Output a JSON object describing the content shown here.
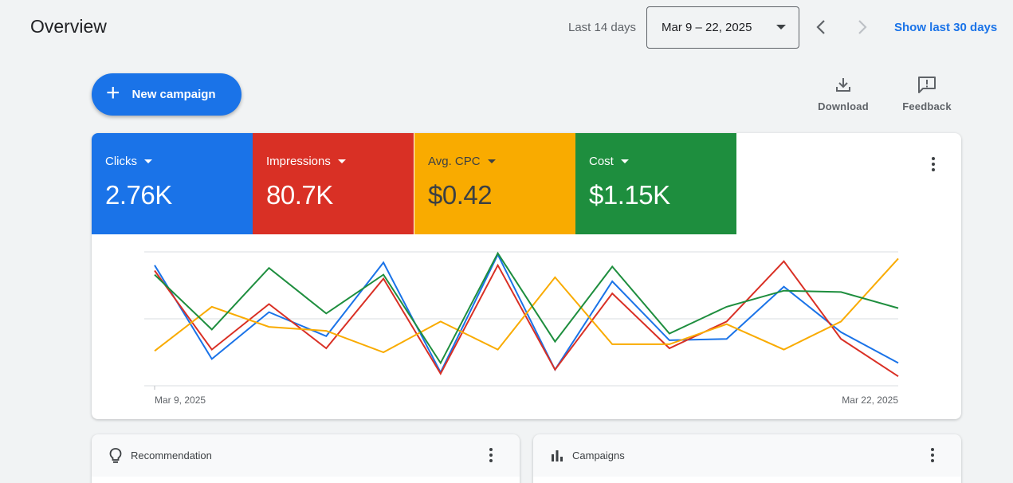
{
  "header": {
    "title": "Overview",
    "date_range_label": "Last 14 days",
    "date_range_value": "Mar 9 – 22, 2025",
    "show_last_30": "Show last 30 days"
  },
  "toolbar": {
    "new_campaign": "New campaign",
    "download": "Download",
    "feedback": "Feedback"
  },
  "metrics": [
    {
      "name": "Clicks",
      "value": "2.76K",
      "color": "#1a73e8"
    },
    {
      "name": "Impressions",
      "value": "80.7K",
      "color": "#d93025"
    },
    {
      "name": "Avg. CPC",
      "value": "$0.42",
      "color": "#f9ab00"
    },
    {
      "name": "Cost",
      "value": "$1.15K",
      "color": "#1e8e3e"
    }
  ],
  "chart_data": {
    "type": "line",
    "x_labels": [
      "Mar 9, 2025",
      "Mar 22, 2025"
    ],
    "x": [
      "Mar 9",
      "Mar 10",
      "Mar 11",
      "Mar 12",
      "Mar 13",
      "Mar 14",
      "Mar 15",
      "Mar 16",
      "Mar 17",
      "Mar 18",
      "Mar 19",
      "Mar 20",
      "Mar 21",
      "Mar 22"
    ],
    "ylim": [
      0,
      1
    ],
    "grid": true,
    "series": [
      {
        "name": "Clicks",
        "color": "#1a73e8",
        "values": [
          0.9,
          0.2,
          0.55,
          0.37,
          0.92,
          0.1,
          0.98,
          0.12,
          0.78,
          0.34,
          0.35,
          0.74,
          0.4,
          0.17
        ]
      },
      {
        "name": "Impressions",
        "color": "#d93025",
        "values": [
          0.86,
          0.27,
          0.61,
          0.28,
          0.8,
          0.09,
          0.9,
          0.12,
          0.69,
          0.28,
          0.48,
          0.93,
          0.35,
          0.07
        ]
      },
      {
        "name": "Avg. CPC",
        "color": "#f9ab00",
        "values": [
          0.26,
          0.59,
          0.44,
          0.41,
          0.25,
          0.48,
          0.27,
          0.81,
          0.31,
          0.31,
          0.46,
          0.27,
          0.48,
          0.95
        ]
      },
      {
        "name": "Cost",
        "color": "#1e8e3e",
        "values": [
          0.83,
          0.42,
          0.88,
          0.54,
          0.83,
          0.17,
          0.99,
          0.33,
          0.89,
          0.39,
          0.59,
          0.71,
          0.7,
          0.58
        ]
      }
    ]
  },
  "cards": {
    "recommendation": "Recommendation",
    "campaigns": "Campaigns"
  }
}
